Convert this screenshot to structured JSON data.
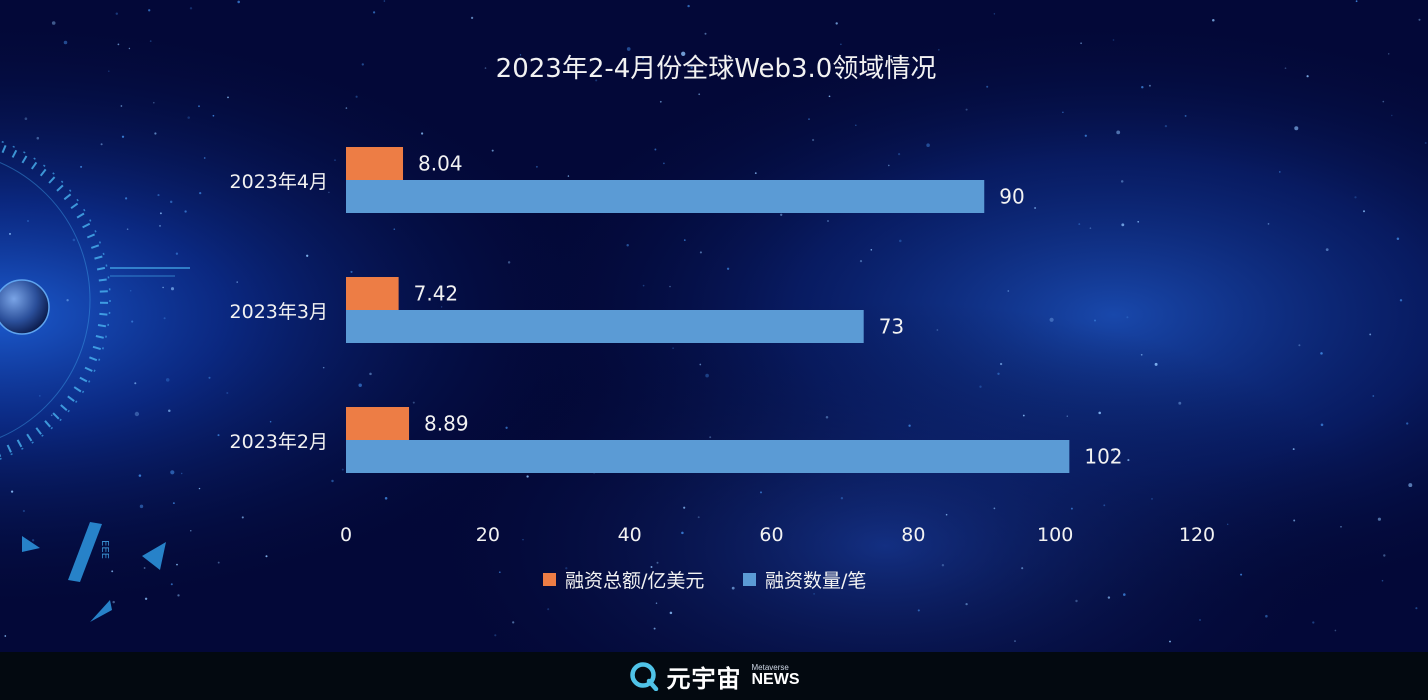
{
  "chart_data": {
    "type": "bar",
    "orientation": "horizontal",
    "title": "2023年2-4月份全球Web3.0领域情况",
    "categories": [
      "2023年4月",
      "2023年3月",
      "2023年2月"
    ],
    "series": [
      {
        "name": "融资总额/亿美元",
        "values": [
          8.04,
          7.42,
          8.89
        ],
        "color": "#ed7d45"
      },
      {
        "name": "融资数量/笔",
        "values": [
          90,
          73,
          102
        ],
        "color": "#5b9bd5"
      }
    ],
    "value_labels": [
      [
        "8.04",
        "7.42",
        "8.89"
      ],
      [
        "90",
        "73",
        "102"
      ]
    ],
    "xlim": [
      0,
      120
    ],
    "x_ticks": [
      "0",
      "20",
      "40",
      "60",
      "80",
      "100",
      "120"
    ],
    "grid": false,
    "legend_position": "bottom-center"
  },
  "footer": {
    "brand_name": "元宇宙",
    "brand_sub_small": "Metaverse",
    "brand_sub_big": "NEWS",
    "brand_color": "#4fc3e8"
  },
  "decor": {
    "hud_text": "ЕЕЕ"
  },
  "colors": {
    "background": "#02062a",
    "text": "#f2f2f2",
    "footer": "#030910"
  }
}
